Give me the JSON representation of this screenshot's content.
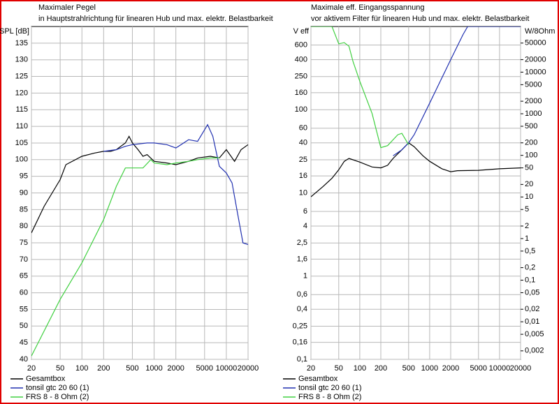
{
  "chart_data": [
    {
      "type": "line",
      "title": "Maximaler Pegel",
      "subtitle": "in Hauptstrahlrichtung für linearen Hub und max. elektr. Belastbarkeit",
      "y_label": "SPL [dB]",
      "xlog": true,
      "ylog": false,
      "grid": true,
      "xlim": [
        20,
        20000
      ],
      "xticks": [
        20,
        50,
        100,
        200,
        500,
        1000,
        2000,
        5000,
        10000,
        20000
      ],
      "ylim": [
        40,
        140
      ],
      "yticks": [
        40,
        45,
        50,
        55,
        60,
        65,
        70,
        75,
        80,
        85,
        90,
        95,
        100,
        105,
        110,
        115,
        120,
        125,
        130,
        135
      ],
      "legend": "bottom",
      "series": [
        {
          "name": "Gesamtbox",
          "color": "#000000",
          "x": [
            20,
            30,
            50,
            60,
            100,
            150,
            200,
            250,
            300,
            400,
            450,
            500,
            600,
            700,
            800,
            1000,
            1500,
            2000,
            3000,
            4000,
            6000,
            8000,
            10000,
            13000,
            16000,
            20000
          ],
          "values": [
            78,
            86,
            94,
            98.5,
            101,
            102,
            102.5,
            102.5,
            103,
            105,
            107,
            105,
            103,
            101,
            101.5,
            99.5,
            99,
            98.5,
            99.5,
            100.5,
            101,
            100.5,
            103,
            99.5,
            103,
            104.5
          ]
        },
        {
          "name": "tonsil gtc 20 60 (1)",
          "color": "#2030b0",
          "x": [
            200,
            300,
            400,
            500,
            800,
            1000,
            1500,
            2000,
            3000,
            4000,
            5000,
            5500,
            6500,
            8000,
            10000,
            12000,
            14000,
            17000,
            20000
          ],
          "values": [
            102.5,
            103,
            104,
            104.5,
            105,
            105,
            104.5,
            103.5,
            106,
            105.5,
            109,
            110.5,
            107,
            98,
            96,
            93,
            85,
            75,
            74.5
          ]
        },
        {
          "name": "FRS 8 - 8 Ohm (2)",
          "color": "#40d040",
          "x": [
            20,
            50,
            100,
            200,
            300,
            400,
            500,
            700,
            900,
            1000,
            1500,
            2000,
            3000,
            4000,
            6000,
            8000
          ],
          "values": [
            41,
            58,
            69,
            82,
            92,
            97.5,
            97.5,
            97.5,
            100,
            99,
            98.5,
            99,
            99.5,
            100,
            100.5,
            100.5
          ]
        }
      ]
    },
    {
      "type": "line",
      "title": "Maximale eff. Eingangsspannung",
      "subtitle": "vor aktivem Filter für linearen Hub und max. elektr. Belastbarkeit",
      "y_label": "V eff",
      "y2_label": "W/8Ohm",
      "xlog": true,
      "ylog": true,
      "grid": true,
      "xlim": [
        20,
        20000
      ],
      "xticks": [
        20,
        50,
        100,
        200,
        500,
        1000,
        2000,
        5000,
        10000,
        20000
      ],
      "ylim": [
        0.1,
        1000
      ],
      "yticks": [
        {
          "value": 0.1,
          "label": "0,1"
        },
        {
          "value": 0.16,
          "label": "0,16"
        },
        {
          "value": 0.25,
          "label": "0,25"
        },
        {
          "value": 0.4,
          "label": "0,4"
        },
        {
          "value": 0.6,
          "label": "0,6"
        },
        1,
        {
          "value": 1.6,
          "label": "1,6"
        },
        {
          "value": 2.5,
          "label": "2,5"
        },
        4,
        6,
        10,
        16,
        25,
        40,
        60,
        100,
        160,
        250,
        400,
        600
      ],
      "y2lim": [
        0.00125,
        125000
      ],
      "y2ticks": [
        {
          "value": 0.002,
          "label": "0,002"
        },
        {
          "value": 0.005,
          "label": "0,005"
        },
        {
          "value": 0.01,
          "label": "0,01"
        },
        {
          "value": 0.02,
          "label": "0,02"
        },
        {
          "value": 0.05,
          "label": "0,05"
        },
        {
          "value": 0.1,
          "label": "0,1"
        },
        {
          "value": 0.2,
          "label": "0,2"
        },
        {
          "value": 0.5,
          "label": "0,5"
        },
        1,
        2,
        5,
        10,
        20,
        50,
        100,
        200,
        500,
        1000,
        2000,
        5000,
        10000,
        20000,
        50000
      ],
      "legend": "bottom",
      "series": [
        {
          "name": "Gesamtbox",
          "color": "#000000",
          "x": [
            20,
            30,
            40,
            50,
            60,
            70,
            80,
            100,
            150,
            200,
            250,
            300,
            400,
            500,
            600,
            800,
            1000,
            1500,
            2000,
            2500,
            5000,
            10000,
            20000
          ],
          "values": [
            9,
            12,
            15,
            19,
            24,
            26,
            25,
            23.5,
            20.5,
            20,
            21.5,
            26,
            33,
            40,
            36,
            28,
            24,
            19.5,
            18,
            18.5,
            18.7,
            19.5,
            20
          ]
        },
        {
          "name": "tonsil gtc 20 60 (1)",
          "color": "#2030b0",
          "x": [
            300,
            400,
            500,
            600,
            1000,
            2000,
            3000,
            3500,
            20000
          ],
          "values": [
            28,
            33,
            40,
            50,
            120,
            400,
            800,
            1000,
            1000
          ]
        },
        {
          "name": "FRS 8 - 8 Ohm (2)",
          "color": "#40d040",
          "x": [
            20,
            40,
            50,
            60,
            70,
            80,
            100,
            150,
            200,
            250,
            350,
            400,
            500
          ],
          "values": [
            1000,
            1000,
            620,
            640,
            580,
            380,
            220,
            90,
            35,
            37,
            50,
            52,
            38
          ]
        }
      ]
    }
  ]
}
